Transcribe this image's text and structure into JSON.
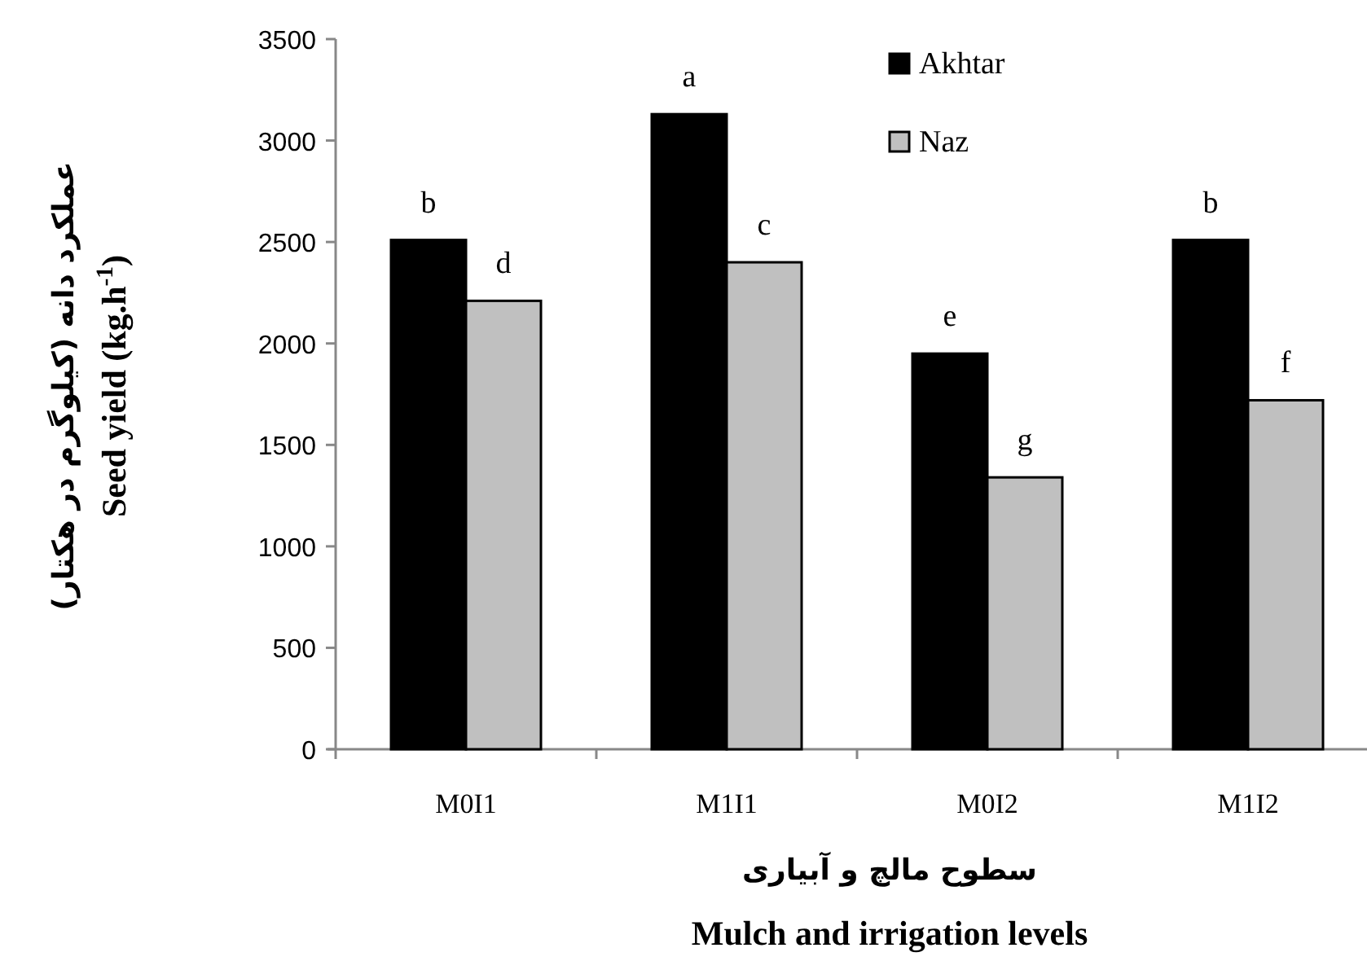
{
  "chart_data": {
    "type": "bar",
    "categories": [
      "M0I1",
      "M1I1",
      "M0I2",
      "M1I2"
    ],
    "series": [
      {
        "name": "Akhtar",
        "color": "#000000",
        "values": [
          2510,
          3130,
          1950,
          2510
        ],
        "value_labels": [
          "b",
          "a",
          "e",
          "b"
        ]
      },
      {
        "name": "Naz",
        "color": "#c0c0c0",
        "values": [
          2210,
          2400,
          1340,
          1720
        ],
        "value_labels": [
          "d",
          "c",
          "g",
          "f"
        ]
      }
    ],
    "ylim": [
      0,
      3500
    ],
    "yticks": [
      0,
      500,
      1000,
      1500,
      2000,
      2500,
      3000,
      3500
    ],
    "ylabel": "عملکرد دانه (کیلوگرم در هکتار)\nSeed yield (kg.h$^{-1}$)",
    "xlabel": "سطوح مالچ و آبیاری\nMulch and irrigation  levels",
    "legend": "top",
    "grid": false
  }
}
